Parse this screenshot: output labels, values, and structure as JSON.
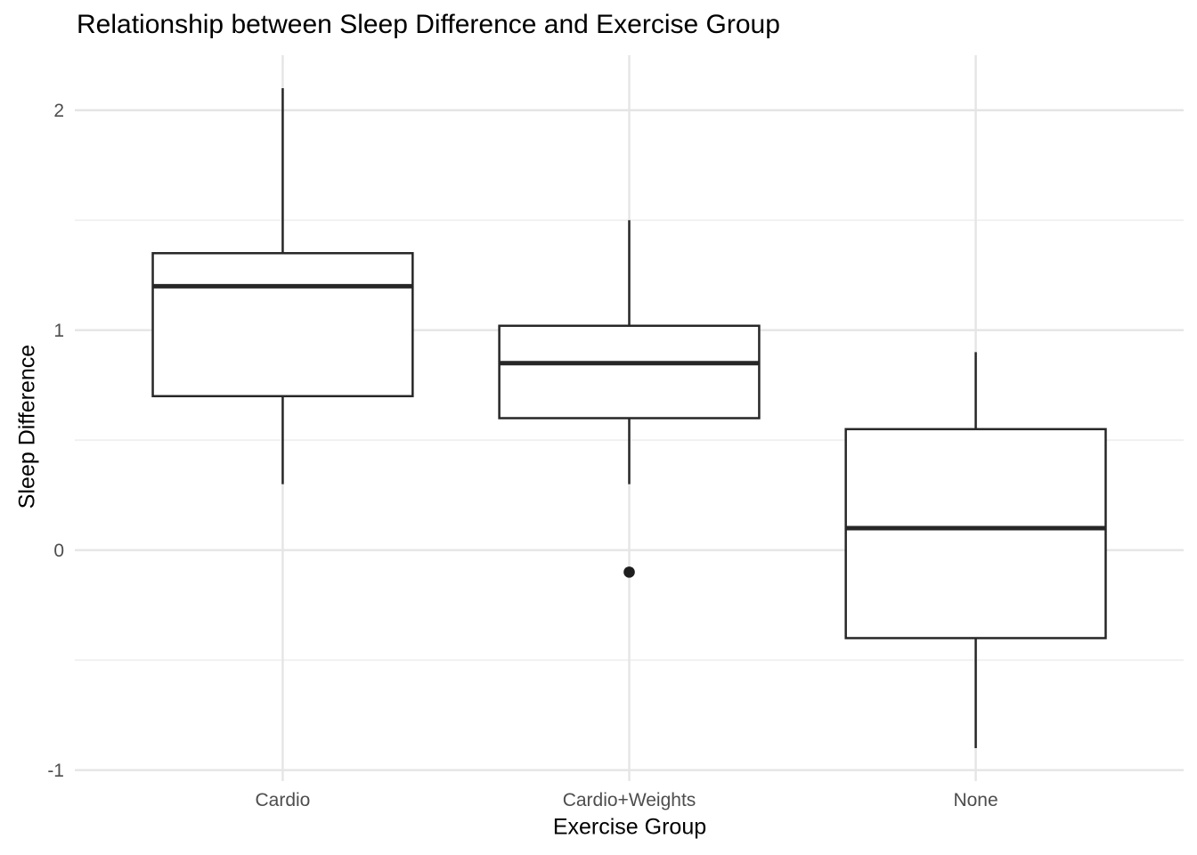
{
  "chart_data": {
    "type": "boxplot",
    "title": "Relationship between Sleep Difference and Exercise Group",
    "xlabel": "Exercise Group",
    "ylabel": "Sleep Difference",
    "categories": [
      "Cardio",
      "Cardio+Weights",
      "None"
    ],
    "series": [
      {
        "name": "Cardio",
        "whisker_low": 0.3,
        "q1": 0.7,
        "median": 1.2,
        "q3": 1.35,
        "whisker_high": 2.1,
        "outliers": []
      },
      {
        "name": "Cardio+Weights",
        "whisker_low": 0.3,
        "q1": 0.6,
        "median": 0.85,
        "q3": 1.02,
        "whisker_high": 1.5,
        "outliers": [
          -0.1
        ]
      },
      {
        "name": "None",
        "whisker_low": -0.9,
        "q1": -0.4,
        "median": 0.1,
        "q3": 0.55,
        "whisker_high": 0.9,
        "outliers": []
      }
    ],
    "y_axis": {
      "tick_values": [
        2,
        1,
        0,
        -1
      ],
      "tick_labels": [
        "2",
        "1",
        "0",
        "-1"
      ],
      "minor_tick_values": [
        1.5,
        0.5,
        -0.5
      ],
      "ylim": [
        -1.05,
        2.25
      ]
    },
    "x_axis": {
      "tick_labels": [
        "Cardio",
        "Cardio+Weights",
        "None"
      ]
    },
    "legend": "none",
    "grid": "on",
    "style": {
      "background": "#FFFFFF",
      "grid_major_color": "#E5E5E5",
      "grid_minor_color": "#F0F0F0",
      "box_stroke_color": "#272727",
      "box_fill_color": "#FFFFFF",
      "outlier_color": "#1E1E1E",
      "tick_label_color": "#4D4D4D",
      "title_color": "#000000",
      "axis_title_color": "#000000"
    }
  }
}
